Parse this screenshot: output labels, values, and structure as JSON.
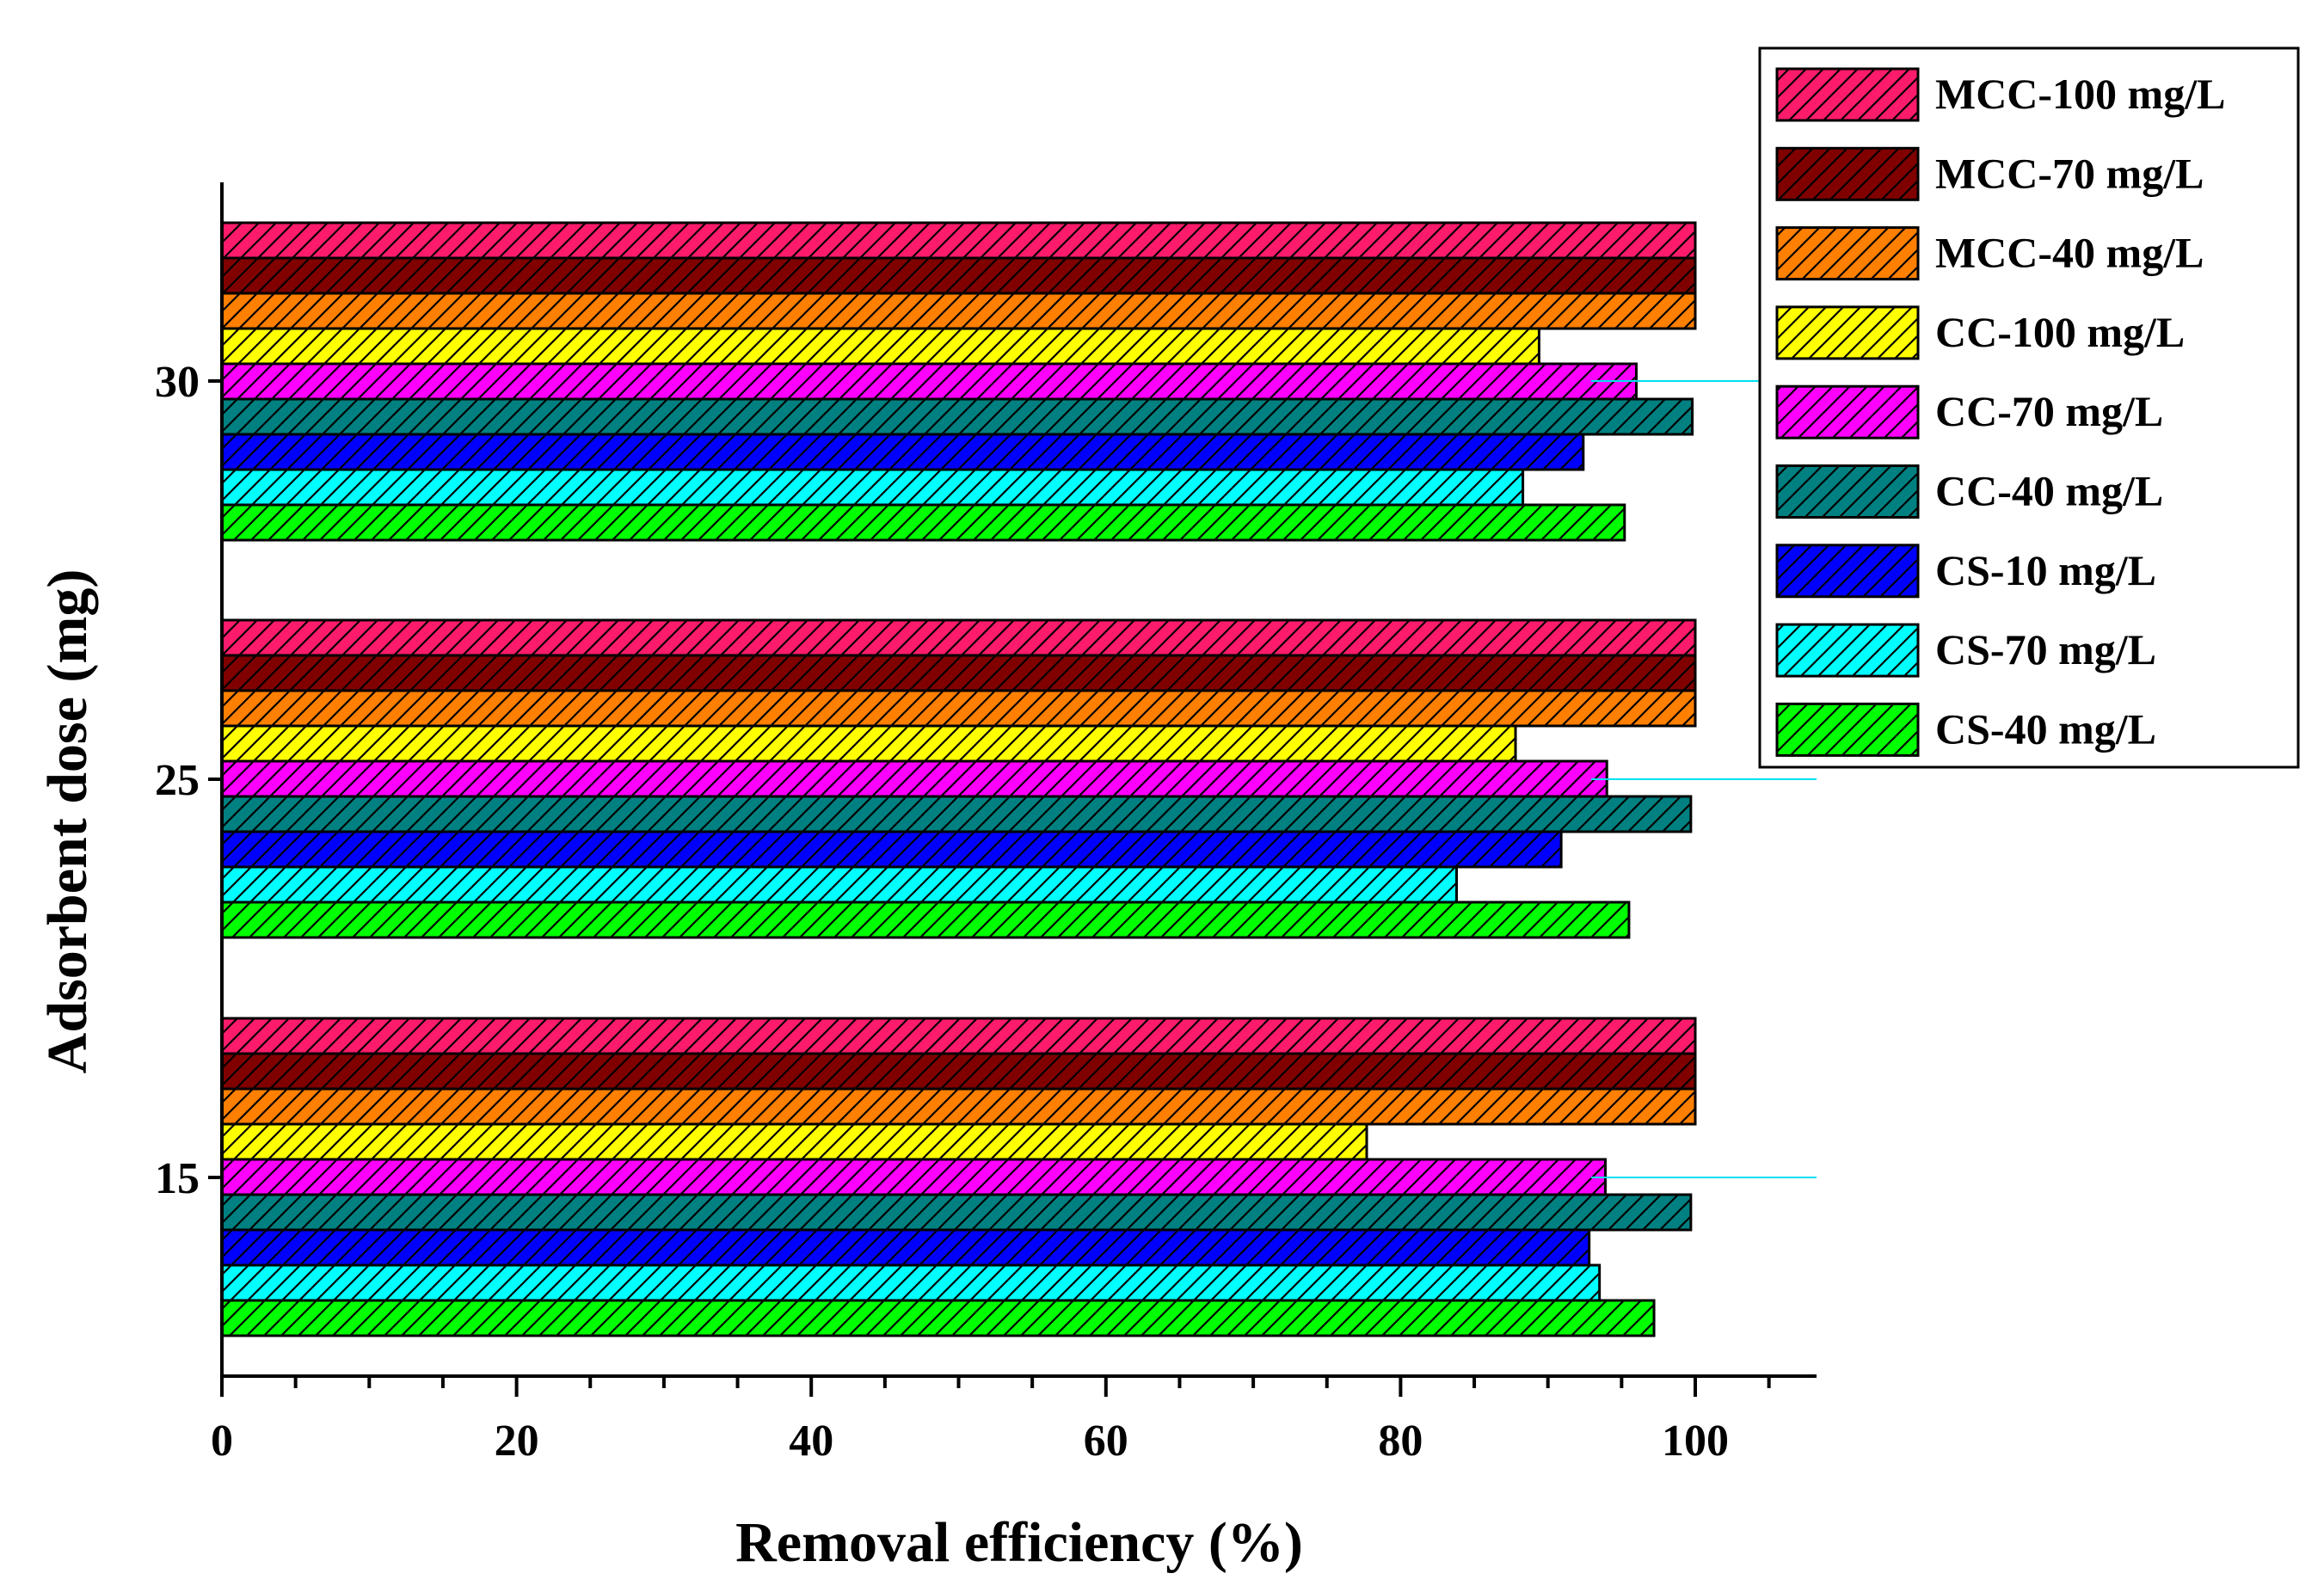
{
  "chart_data": {
    "type": "bar",
    "orientation": "horizontal",
    "xlabel": "Removal efficiency (%)",
    "ylabel": "Adsorbent dose (mg)",
    "xlim": [
      0,
      108
    ],
    "x_ticks": [
      "0",
      "20",
      "40",
      "60",
      "80",
      "100"
    ],
    "categories": [
      "15",
      "25",
      "30"
    ],
    "legend_position": "top-right",
    "pattern": "diagonal-hatch",
    "series": [
      {
        "name": "MCC-100 mg/L",
        "color": "#FF1B6B",
        "values": [
          100,
          100,
          100
        ]
      },
      {
        "name": "MCC-70 mg/L",
        "color": "#800000",
        "values": [
          100,
          100,
          100
        ]
      },
      {
        "name": "MCC-40 mg/L",
        "color": "#FF7F00",
        "values": [
          100,
          100,
          100
        ]
      },
      {
        "name": "CC-100 mg/L",
        "color": "#FFFF00",
        "values": [
          77.7,
          87.8,
          89.4
        ]
      },
      {
        "name": "CC-70 mg/L",
        "color": "#FF00FF",
        "values": [
          93.9,
          94,
          96
        ]
      },
      {
        "name": "CC-40 mg/L",
        "color": "#008080",
        "values": [
          99.7,
          99.7,
          99.8
        ]
      },
      {
        "name": "CS-10 mg/L",
        "color": "#0000FF",
        "values": [
          92.8,
          90.9,
          92.4
        ]
      },
      {
        "name": "CS-70 mg/L",
        "color": "#00FFFF",
        "values": [
          93.5,
          83.8,
          88.3
        ]
      },
      {
        "name": "CS-40 mg/L",
        "color": "#00FF00",
        "values": [
          97.2,
          95.5,
          95.2
        ]
      }
    ]
  }
}
